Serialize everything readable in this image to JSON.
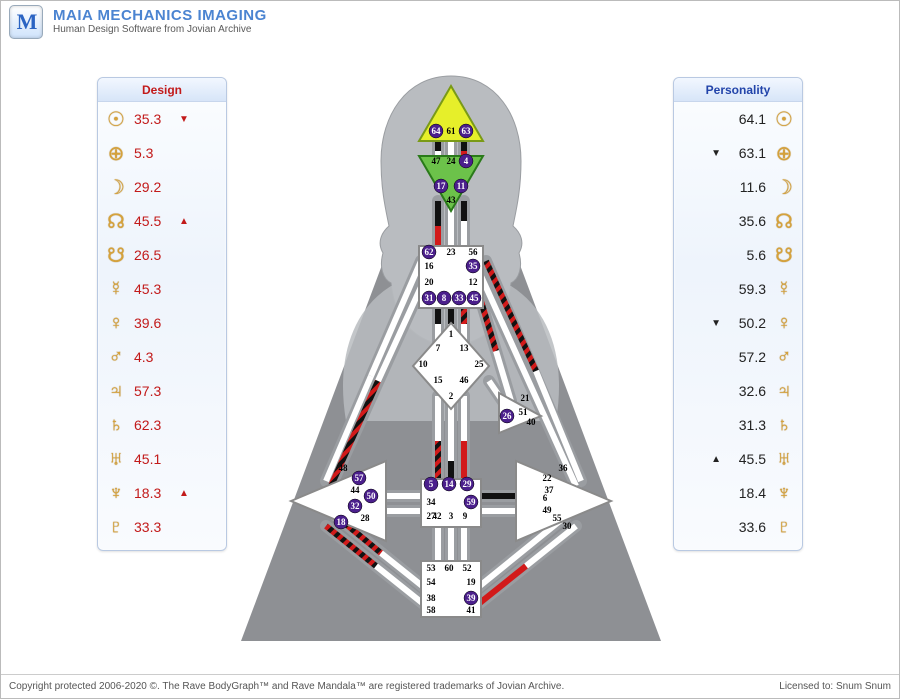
{
  "header": {
    "logo": "M",
    "title": "MAIA MECHANICS IMAGING",
    "subtitle": "Human Design Software from Jovian Archive"
  },
  "footer": {
    "left": "Copyright protected 2006-2020 ©. The Rave BodyGraph™ and Rave Mandala™ are registered trademarks of Jovian Archive.",
    "right": "Licensed to: Snum Snum"
  },
  "design": {
    "title": "Design",
    "glyph_color": "#d6a23a",
    "text_color": "#c21a1a",
    "rows": [
      {
        "g": "☉",
        "v": "35.3",
        "a": "▼"
      },
      {
        "g": "⊕",
        "v": "5.3",
        "a": ""
      },
      {
        "g": "☽",
        "v": "29.2",
        "a": ""
      },
      {
        "g": "☊",
        "v": "45.5",
        "a": "▲"
      },
      {
        "g": "☋",
        "v": "26.5",
        "a": ""
      },
      {
        "g": "☿",
        "v": "45.3",
        "a": ""
      },
      {
        "g": "♀",
        "v": "39.6",
        "a": ""
      },
      {
        "g": "♂",
        "v": "4.3",
        "a": ""
      },
      {
        "g": "♃",
        "v": "57.3",
        "a": ""
      },
      {
        "g": "♄",
        "v": "62.3",
        "a": ""
      },
      {
        "g": "♅",
        "v": "45.1",
        "a": ""
      },
      {
        "g": "♆",
        "v": "18.3",
        "a": "▲"
      },
      {
        "g": "♇",
        "v": "33.3",
        "a": ""
      }
    ]
  },
  "personality": {
    "title": "Personality",
    "glyph_color": "#d6a23a",
    "text_color": "#222",
    "rows": [
      {
        "g": "☉",
        "v": "64.1",
        "a": ""
      },
      {
        "g": "⊕",
        "v": "63.1",
        "a": "▼"
      },
      {
        "g": "☽",
        "v": "11.6",
        "a": ""
      },
      {
        "g": "☊",
        "v": "35.6",
        "a": ""
      },
      {
        "g": "☋",
        "v": "5.6",
        "a": ""
      },
      {
        "g": "☿",
        "v": "59.3",
        "a": ""
      },
      {
        "g": "♀",
        "v": "50.2",
        "a": "▼"
      },
      {
        "g": "♂",
        "v": "57.2",
        "a": ""
      },
      {
        "g": "♃",
        "v": "32.6",
        "a": ""
      },
      {
        "g": "♄",
        "v": "31.3",
        "a": ""
      },
      {
        "g": "♅",
        "v": "45.5",
        "a": "▲"
      },
      {
        "g": "♆",
        "v": "18.4",
        "a": ""
      },
      {
        "g": "♇",
        "v": "33.6",
        "a": ""
      }
    ]
  },
  "colors": {
    "head_fill": "#e6ef2a",
    "head_stroke": "#7a9a17",
    "ajna_fill": "#6cc24a",
    "ajna_stroke": "#2a7a1a",
    "white": "#ffffff",
    "center_stroke": "#8a8a8a",
    "silhouette": "#b9bcc0",
    "pyramid": "#8e9094",
    "channel_red": "#d21a1a",
    "channel_black": "#111",
    "channel_empty": "#fff",
    "channel_outline": "#888"
  },
  "gates": {
    "head": [
      "64",
      "61",
      "63"
    ],
    "ajna": [
      "47",
      "24",
      "4",
      "17",
      "11",
      "43"
    ],
    "throat": [
      "62",
      "23",
      "56",
      "16",
      "35",
      "20",
      "12",
      "31",
      "8",
      "33",
      "45"
    ],
    "g": [
      "1",
      "7",
      "13",
      "10",
      "25",
      "15",
      "46",
      "2"
    ],
    "ego": [
      "21",
      "26",
      "51",
      "40"
    ],
    "sacral": [
      "5",
      "14",
      "29",
      "34",
      "59",
      "27",
      "42",
      "3",
      "9"
    ],
    "spleen": [
      "48",
      "57",
      "44",
      "50",
      "32",
      "28",
      "18"
    ],
    "solar": [
      "36",
      "22",
      "6",
      "37",
      "49",
      "55",
      "30"
    ],
    "root": [
      "53",
      "60",
      "52",
      "54",
      "19",
      "38",
      "39",
      "58",
      "41"
    ]
  },
  "active_balls": [
    "64",
    "63",
    "4",
    "11",
    "17",
    "62",
    "35",
    "31",
    "8",
    "33",
    "45",
    "26",
    "5",
    "14",
    "29",
    "59",
    "57",
    "50",
    "32",
    "18",
    "39"
  ]
}
